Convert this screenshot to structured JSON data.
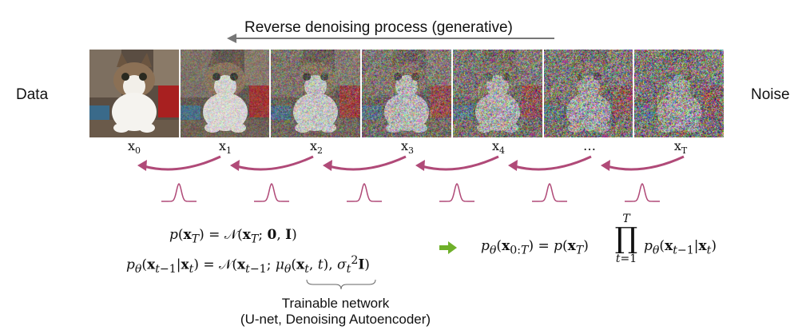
{
  "header": {
    "process_label": "Reverse denoising process (generative)"
  },
  "side_labels": {
    "left": "Data",
    "right": "Noise"
  },
  "frames": [
    {
      "label_main": "x",
      "label_sub": "0",
      "noise": 0.0
    },
    {
      "label_main": "x",
      "label_sub": "1",
      "noise": 0.35
    },
    {
      "label_main": "x",
      "label_sub": "2",
      "noise": 0.55
    },
    {
      "label_main": "x",
      "label_sub": "3",
      "noise": 0.7
    },
    {
      "label_main": "x",
      "label_sub": "4",
      "noise": 0.82
    },
    {
      "label_main": "…",
      "label_sub": "",
      "noise": 0.93
    },
    {
      "label_main": "x",
      "label_sub": "T",
      "noise": 1.0
    }
  ],
  "colors": {
    "arrow": "#b04a78",
    "gaussian": "#b04a78",
    "implies_arrow": "#6fb02a",
    "header_arrow": "#777777"
  },
  "equations": {
    "prior": "p(x_T) = N(x_T; 0, I)",
    "reverse_step": "p_θ(x_{t−1}|x_t) = N(x_{t−1}; μ_θ(x_t, t), σ_t² I)",
    "joint": "p_θ(x_{0:T}) = p(x_T) ∏_{t=1}^{T} p_θ(x_{t−1}|x_t)"
  },
  "caption": {
    "line1": "Trainable network",
    "line2": "(U-net, Denoising Autoencoder)"
  }
}
